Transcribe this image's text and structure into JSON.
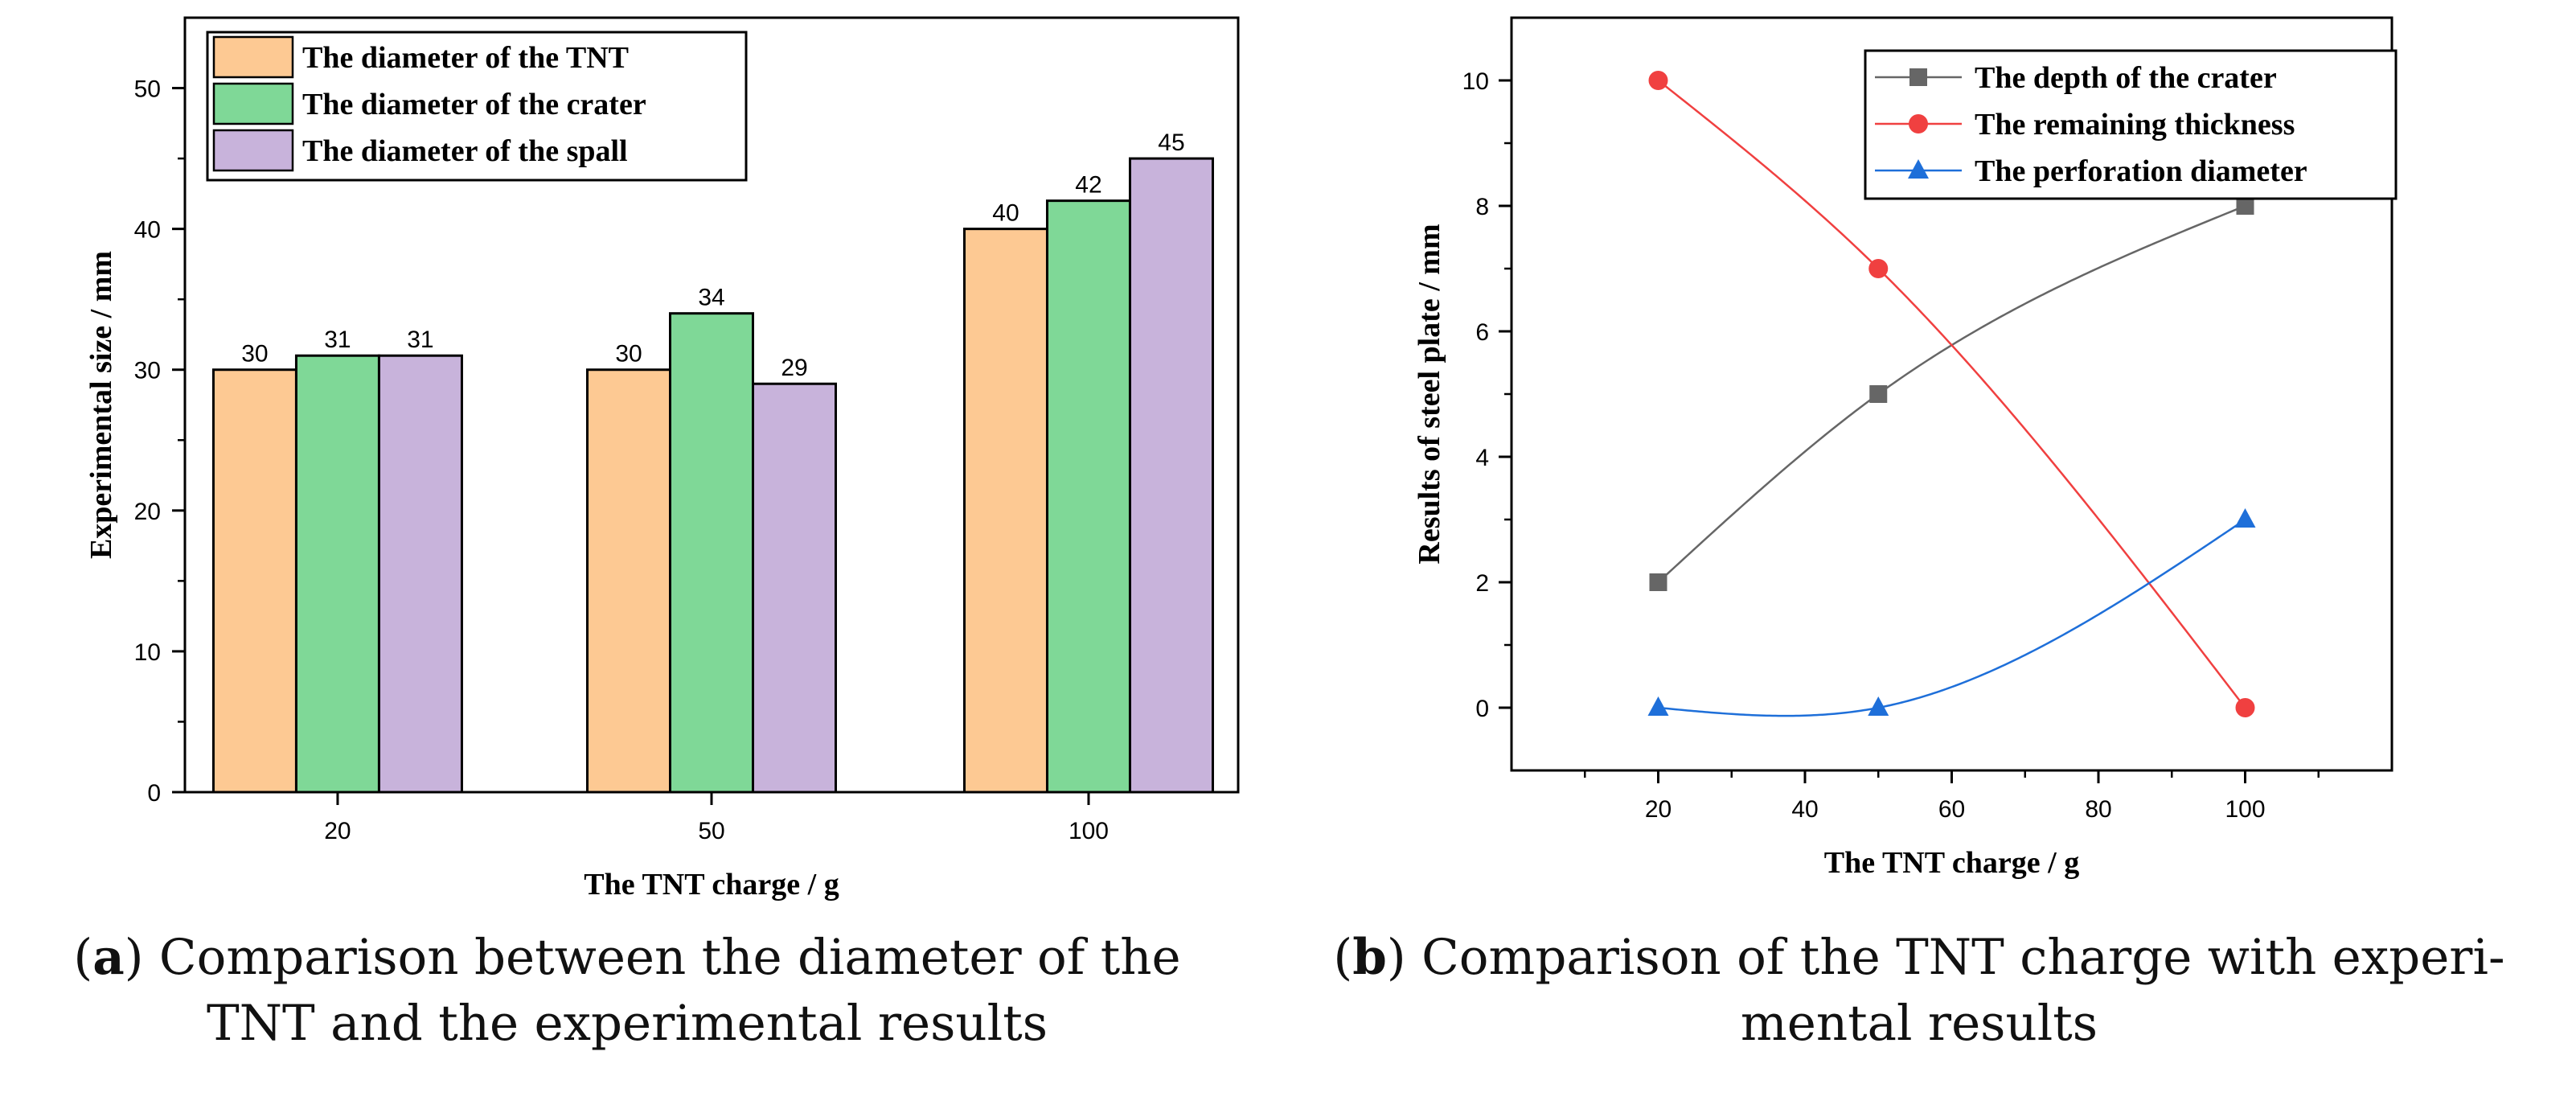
{
  "chart_data": [
    {
      "type": "bar",
      "panel": "a",
      "categories": [
        "20",
        "50",
        "100"
      ],
      "series": [
        {
          "name": "The diameter of the TNT",
          "values": [
            30,
            30,
            40
          ],
          "color": "#FDC993"
        },
        {
          "name": "The diameter of the crater",
          "values": [
            31,
            34,
            42
          ],
          "color": "#7FD897"
        },
        {
          "name": "The diameter of the spall",
          "values": [
            31,
            29,
            45
          ],
          "color": "#C8B3DB"
        }
      ],
      "xlabel": "The TNT charge / g",
      "ylabel": "Experimental size / mm",
      "ylim": [
        0,
        55
      ],
      "yticks": [
        0,
        10,
        20,
        30,
        40,
        50
      ],
      "legend": "top-left",
      "grid": false
    },
    {
      "type": "line",
      "panel": "b",
      "x": [
        20,
        50,
        100
      ],
      "series": [
        {
          "name": "The depth of the crater",
          "values": [
            2,
            5,
            8
          ],
          "color": "#666666",
          "marker": "square"
        },
        {
          "name": "The remaining thickness",
          "values": [
            10,
            7,
            0
          ],
          "color": "#F04040",
          "marker": "circle"
        },
        {
          "name": "The perforation diameter",
          "values": [
            0,
            0,
            3
          ],
          "color": "#1E6FD9",
          "marker": "triangle"
        }
      ],
      "xlabel": "The TNT charge / g",
      "ylabel": "Results of steel plate / mm",
      "xlim": [
        0,
        120
      ],
      "ylim": [
        -1,
        11
      ],
      "xticks": [
        20,
        40,
        60,
        80,
        100
      ],
      "yticks": [
        0,
        2,
        4,
        6,
        8,
        10
      ],
      "legend": "top-right",
      "grid": false
    }
  ],
  "captions": {
    "a": {
      "tag": "a",
      "line1": "Comparison between the diameter of the",
      "line2": "TNT and the experimental results"
    },
    "b": {
      "tag": "b",
      "line1": "Comparison of the TNT charge with experi-",
      "line2": "mental results"
    }
  }
}
